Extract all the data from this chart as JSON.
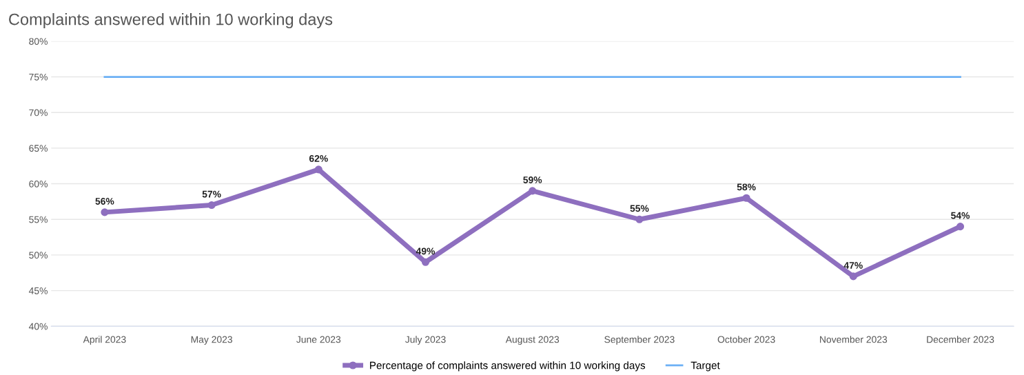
{
  "chart_data": {
    "type": "line",
    "title": "Complaints answered within 10 working days",
    "categories": [
      "April 2023",
      "May 2023",
      "June 2023",
      "July 2023",
      "August 2023",
      "September 2023",
      "October 2023",
      "November 2023",
      "December 2023"
    ],
    "series": [
      {
        "name": "Percentage of complaints answered within 10 working days",
        "color": "#8e6fbf",
        "marker": "circle",
        "values": [
          56,
          57,
          62,
          49,
          59,
          55,
          58,
          47,
          54
        ],
        "value_labels": [
          "56%",
          "57%",
          "62%",
          "49%",
          "59%",
          "55%",
          "58%",
          "47%",
          "54%"
        ]
      },
      {
        "name": "Target",
        "color": "#6cb0f5",
        "marker": "none",
        "values": [
          75,
          75,
          75,
          75,
          75,
          75,
          75,
          75,
          75
        ]
      }
    ],
    "ylim": [
      40,
      80
    ],
    "yticks": [
      {
        "value": 40,
        "label": "40%"
      },
      {
        "value": 45,
        "label": "45%"
      },
      {
        "value": 50,
        "label": "50%"
      },
      {
        "value": 55,
        "label": "55%"
      },
      {
        "value": 60,
        "label": "60%"
      },
      {
        "value": 65,
        "label": "65%"
      },
      {
        "value": 70,
        "label": "70%"
      },
      {
        "value": 75,
        "label": "75%"
      },
      {
        "value": 80,
        "label": "80%"
      }
    ],
    "grid": "y",
    "legend": "bottom",
    "line_style": "solid"
  }
}
